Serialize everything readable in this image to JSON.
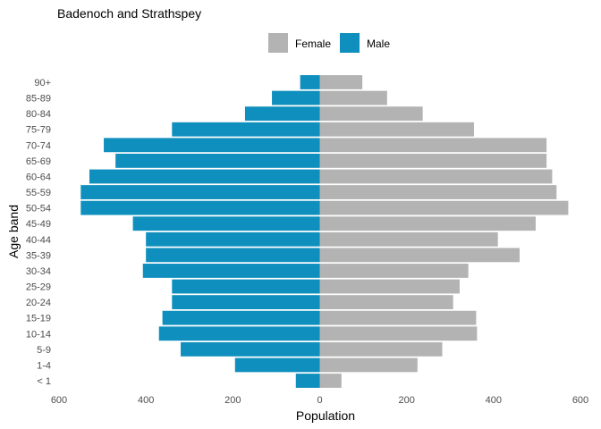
{
  "chart_data": {
    "type": "bar",
    "orientation": "horizontal",
    "layout": "population-pyramid",
    "title": "Badenoch and Strathspey",
    "xlabel": "Population",
    "ylabel": "Age band",
    "xlim": [
      -600,
      600
    ],
    "x_ticks": [
      -600,
      -400,
      -200,
      0,
      200,
      400,
      600
    ],
    "x_tick_labels": [
      "600",
      "400",
      "200",
      "0",
      "200",
      "400",
      "600"
    ],
    "categories": [
      "< 1",
      "1-4",
      "5-9",
      "10-14",
      "15-19",
      "20-24",
      "25-29",
      "30-34",
      "35-39",
      "40-44",
      "45-49",
      "50-54",
      "55-59",
      "60-64",
      "65-69",
      "70-74",
      "75-79",
      "80-84",
      "85-89",
      "90+"
    ],
    "series": [
      {
        "name": "Female",
        "color": "#b3b3b3",
        "direction": "right",
        "values": [
          50,
          225,
          282,
          362,
          360,
          307,
          322,
          342,
          460,
          410,
          497,
          572,
          545,
          535,
          522,
          522,
          355,
          237,
          155,
          98
        ]
      },
      {
        "name": "Male",
        "color": "#0f8fbd",
        "direction": "left",
        "values": [
          55,
          195,
          320,
          370,
          362,
          340,
          340,
          407,
          400,
          400,
          430,
          550,
          550,
          530,
          470,
          497,
          340,
          172,
          110,
          45
        ]
      }
    ],
    "grid": false,
    "legend_position": "top"
  }
}
